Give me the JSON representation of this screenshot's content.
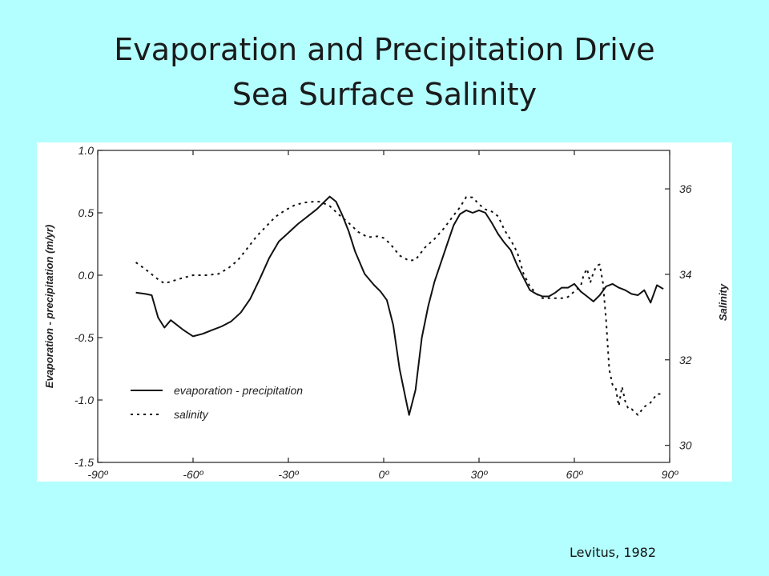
{
  "slide": {
    "title_line1": "Evaporation and Precipitation Drive",
    "title_line2": "Sea Surface Salinity",
    "citation": "Levitus, 1982",
    "background_color": "#b3ffff"
  },
  "chart_data": {
    "type": "line",
    "xlabel": "",
    "ylabel_left": "Evaporation - precipitation (m/yr)",
    "ylabel_right": "Salinity",
    "xlim": [
      -90,
      90
    ],
    "ylim_left": [
      -1.5,
      1.0
    ],
    "ylim_right": [
      29.6,
      36.9
    ],
    "x_ticks": [
      -90,
      -60,
      -30,
      0,
      30,
      60,
      90
    ],
    "x_tick_labels": [
      "-90º",
      "-60º",
      "-30º",
      "0º",
      "30º",
      "60º",
      "90º"
    ],
    "y_left_ticks": [
      1.0,
      0.5,
      0.0,
      -0.5,
      -1.0,
      -1.5
    ],
    "y_left_tick_labels": [
      "1.0",
      "0.5",
      "0.0",
      "-0.5",
      "-1.0",
      "-1.5"
    ],
    "y_right_ticks": [
      36,
      34,
      32,
      30
    ],
    "y_right_tick_labels": [
      "36",
      "34",
      "32",
      "30"
    ],
    "grid": false,
    "legend_position": "lower-left",
    "series": [
      {
        "name": "evaporation - precipitation",
        "axis": "left",
        "style": "solid",
        "x": [
          -78,
          -75,
          -73,
          -71,
          -69,
          -67,
          -65,
          -63,
          -60,
          -57,
          -54,
          -51,
          -48,
          -45,
          -42,
          -39,
          -36,
          -33,
          -30,
          -27,
          -24,
          -21,
          -19,
          -17,
          -15,
          -13,
          -11,
          -9,
          -6,
          -3,
          -1,
          1,
          3,
          5,
          7,
          8,
          10,
          12,
          14,
          16,
          18,
          20,
          22,
          24,
          26,
          28,
          30,
          32,
          34,
          36,
          38,
          40,
          42,
          44,
          46,
          48,
          50,
          52,
          54,
          56,
          58,
          60,
          62,
          64,
          66,
          68,
          70,
          72,
          74,
          76,
          78,
          80,
          82,
          84,
          86,
          88
        ],
        "values": [
          -0.14,
          -0.15,
          -0.16,
          -0.34,
          -0.42,
          -0.36,
          -0.4,
          -0.44,
          -0.49,
          -0.47,
          -0.44,
          -0.41,
          -0.37,
          -0.3,
          -0.19,
          -0.03,
          0.14,
          0.27,
          0.34,
          0.41,
          0.47,
          0.53,
          0.58,
          0.63,
          0.59,
          0.48,
          0.35,
          0.19,
          0.01,
          -0.08,
          -0.13,
          -0.2,
          -0.4,
          -0.75,
          -1.0,
          -1.12,
          -0.92,
          -0.5,
          -0.25,
          -0.05,
          0.1,
          0.25,
          0.4,
          0.49,
          0.52,
          0.5,
          0.52,
          0.5,
          0.42,
          0.33,
          0.26,
          0.2,
          0.08,
          -0.02,
          -0.12,
          -0.15,
          -0.17,
          -0.17,
          -0.14,
          -0.1,
          -0.1,
          -0.07,
          -0.13,
          -0.17,
          -0.21,
          -0.16,
          -0.09,
          -0.07,
          -0.1,
          -0.12,
          -0.15,
          -0.16,
          -0.12,
          -0.22,
          -0.08,
          -0.11
        ]
      },
      {
        "name": "salinity",
        "axis": "right",
        "style": "dotted",
        "x": [
          -78,
          -75,
          -73,
          -71,
          -69,
          -67,
          -64,
          -60,
          -56,
          -52,
          -49,
          -46,
          -43,
          -40,
          -37,
          -34,
          -31,
          -28,
          -25,
          -22,
          -20,
          -17,
          -14,
          -11,
          -8,
          -5,
          -2,
          0,
          2,
          5,
          8,
          10,
          13,
          16,
          19,
          22,
          24,
          26,
          28,
          30,
          32,
          34,
          36,
          38,
          40,
          42,
          44,
          46,
          48,
          50,
          52,
          54,
          56,
          58,
          60,
          62,
          63,
          64,
          65,
          66,
          67,
          68,
          69,
          70,
          71,
          72,
          73,
          74,
          75,
          76,
          77,
          78,
          80,
          82,
          84,
          86,
          88
        ],
        "values": [
          34.28,
          34.12,
          34.0,
          33.88,
          33.79,
          33.83,
          33.9,
          33.98,
          33.98,
          34.01,
          34.14,
          34.32,
          34.6,
          34.89,
          35.12,
          35.35,
          35.5,
          35.62,
          35.68,
          35.7,
          35.7,
          35.6,
          35.39,
          35.2,
          34.99,
          34.87,
          34.89,
          34.85,
          34.72,
          34.44,
          34.32,
          34.34,
          34.63,
          34.83,
          35.08,
          35.38,
          35.57,
          35.81,
          35.8,
          35.64,
          35.52,
          35.47,
          35.36,
          35.04,
          34.8,
          34.52,
          34.02,
          33.72,
          33.55,
          33.44,
          33.44,
          33.44,
          33.44,
          33.47,
          33.6,
          33.72,
          34.0,
          34.13,
          33.8,
          34.04,
          34.2,
          34.23,
          33.8,
          32.91,
          31.77,
          31.42,
          31.34,
          30.92,
          31.37,
          31.03,
          30.85,
          30.85,
          30.71,
          30.9,
          31.0,
          31.2,
          31.2
        ]
      }
    ]
  }
}
